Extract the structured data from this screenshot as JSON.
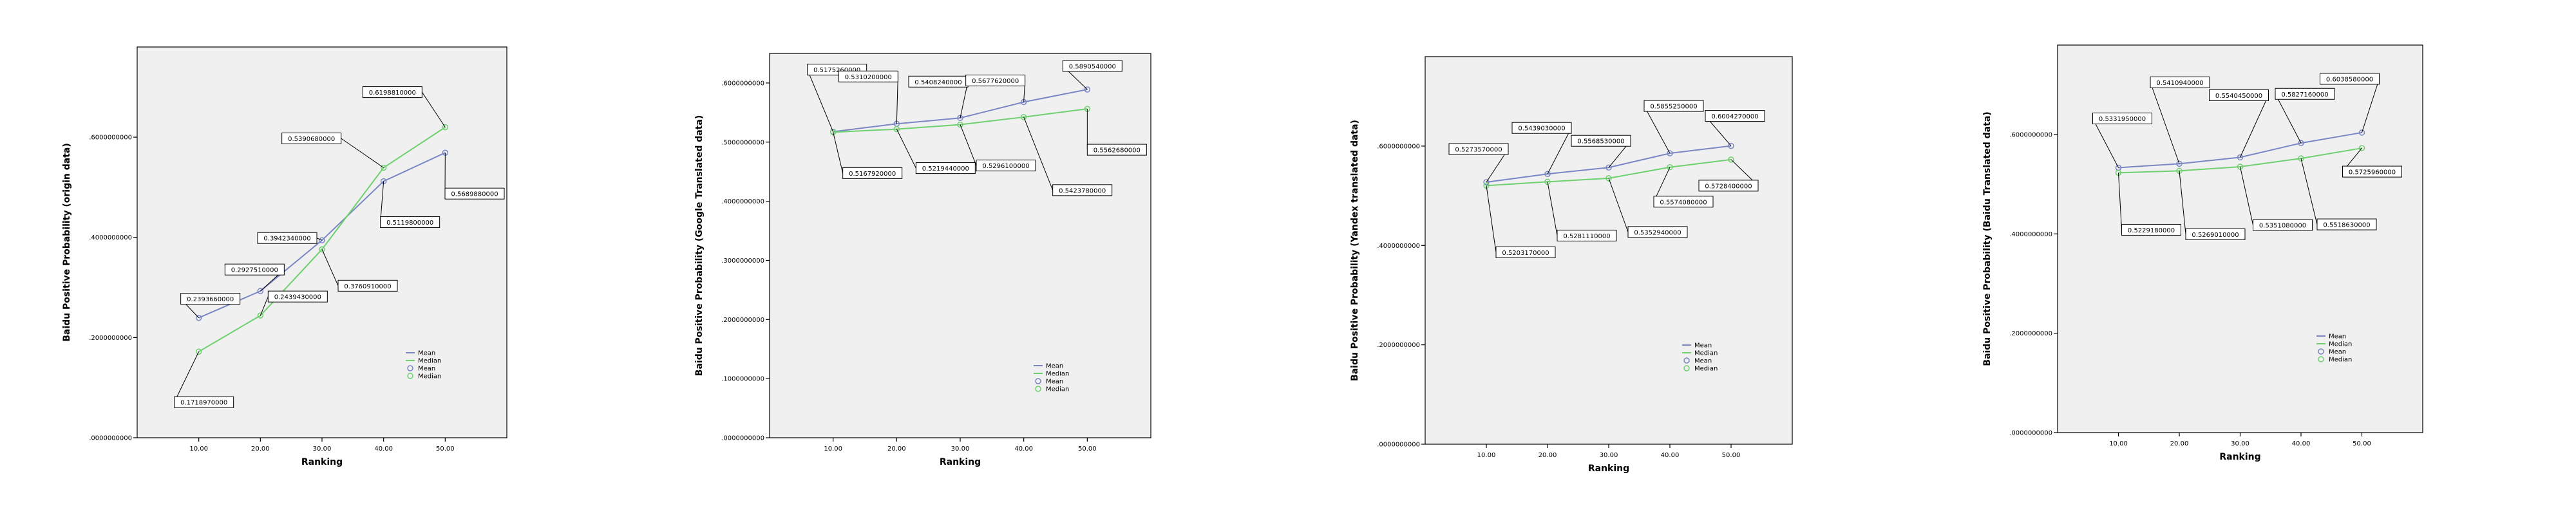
{
  "chart_data": [
    {
      "type": "line",
      "xlabel": "Ranking",
      "ylabel": "Baidu Positive Probability (origin data)",
      "x": [
        10,
        20,
        30,
        40,
        50
      ],
      "x_tick_labels": [
        "10.00",
        "20.00",
        "30.00",
        "40.00",
        "50.00"
      ],
      "ylim": [
        0,
        0.78
      ],
      "y_ticks": [
        0.0,
        0.2,
        0.4,
        0.6
      ],
      "y_tick_labels": [
        ".0000000000",
        ".2000000000",
        ".4000000000",
        ".6000000000"
      ],
      "series": [
        {
          "name": "Mean",
          "values": [
            0.239366,
            0.292751,
            0.394234,
            0.51198,
            0.568988
          ],
          "labels": [
            "0.2393660000",
            "0.2927510000",
            "0.3942340000",
            "0.5119800000",
            "0.5689880000"
          ]
        },
        {
          "name": "Median",
          "values": [
            0.171897,
            0.243943,
            0.376091,
            0.539068,
            0.619881
          ],
          "labels": [
            "0.1718970000",
            "0.2439430000",
            "0.3760910000",
            "0.5390680000",
            "0.6198810000"
          ]
        }
      ],
      "legend": [
        "Mean",
        "Median",
        "Mean",
        "Median"
      ],
      "grid": false
    },
    {
      "type": "line",
      "xlabel": "Ranking",
      "ylabel": "Baidu Positive Probability (Google Translated data)",
      "x": [
        10,
        20,
        30,
        40,
        50
      ],
      "x_tick_labels": [
        "10.00",
        "20.00",
        "30.00",
        "40.00",
        "50.00"
      ],
      "ylim": [
        0,
        0.65
      ],
      "y_ticks": [
        0.0,
        0.1,
        0.2,
        0.3,
        0.4,
        0.5,
        0.6
      ],
      "y_tick_labels": [
        ".0000000000",
        ".1000000000",
        ".2000000000",
        ".3000000000",
        ".4000000000",
        ".5000000000",
        ".6000000000"
      ],
      "series": [
        {
          "name": "Mean",
          "values": [
            0.517526,
            0.53102,
            0.540824,
            0.567762,
            0.589054
          ],
          "labels": [
            "0.5175260000",
            "0.5310200000",
            "0.5408240000",
            "0.5677620000",
            "0.5890540000"
          ]
        },
        {
          "name": "Median",
          "values": [
            0.516792,
            0.521944,
            0.52961,
            0.542378,
            0.556268
          ],
          "labels": [
            "0.5167920000",
            "0.5219440000",
            "0.5296100000",
            "0.5423780000",
            "0.5562680000"
          ]
        }
      ],
      "legend": [
        "Mean",
        "Median",
        "Mean",
        "Median"
      ],
      "grid": false
    },
    {
      "type": "line",
      "xlabel": "Ranking",
      "ylabel": "Baidu Positive Probability (Yandex translated data)",
      "x": [
        10,
        20,
        30,
        40,
        50
      ],
      "x_tick_labels": [
        "10.00",
        "20.00",
        "30.00",
        "40.00",
        "50.00"
      ],
      "ylim": [
        0,
        0.78
      ],
      "y_ticks": [
        0.0,
        0.2,
        0.4,
        0.6
      ],
      "y_tick_labels": [
        ".0000000000",
        ".2000000000",
        ".4000000000",
        ".6000000000"
      ],
      "series": [
        {
          "name": "Mean",
          "values": [
            0.527357,
            0.543903,
            0.556853,
            0.585525,
            0.600427
          ],
          "labels": [
            "0.5273570000",
            "0.5439030000",
            "0.5568530000",
            "0.5855250000",
            "0.6004270000"
          ]
        },
        {
          "name": "Median",
          "values": [
            0.520317,
            0.528111,
            0.535294,
            0.557408,
            0.57284
          ],
          "labels": [
            "0.5203170000",
            "0.5281110000",
            "0.5352940000",
            "0.5574080000",
            "0.5728400000"
          ]
        }
      ],
      "legend": [
        "Mean",
        "Median",
        "Mean",
        "Median"
      ],
      "grid": false
    },
    {
      "type": "line",
      "xlabel": "Ranking",
      "ylabel": "Baidu Positive Probability (Baidu Translated data)",
      "x": [
        10,
        20,
        30,
        40,
        50
      ],
      "x_tick_labels": [
        "10.00",
        "20.00",
        "30.00",
        "40.00",
        "50.00"
      ],
      "ylim": [
        0,
        0.78
      ],
      "y_ticks": [
        0.0,
        0.2,
        0.4,
        0.6
      ],
      "y_tick_labels": [
        ".0000000000",
        ".2000000000",
        ".4000000000",
        ".6000000000"
      ],
      "series": [
        {
          "name": "Mean",
          "values": [
            0.533195,
            0.541094,
            0.554045,
            0.582716,
            0.603858
          ],
          "labels": [
            "0.5331950000",
            "0.5410940000",
            "0.5540450000",
            "0.5827160000",
            "0.6038580000"
          ]
        },
        {
          "name": "Median",
          "values": [
            0.522918,
            0.526901,
            0.535108,
            0.551863,
            0.572596
          ],
          "labels": [
            "0.5229180000",
            "0.5269010000",
            "0.5351080000",
            "0.5518630000",
            "0.5725960000"
          ]
        }
      ],
      "legend": [
        "Mean",
        "Median",
        "Mean",
        "Median"
      ],
      "grid": false
    }
  ],
  "colors": {
    "mean": "#7b86c4",
    "median": "#6fd06f"
  }
}
